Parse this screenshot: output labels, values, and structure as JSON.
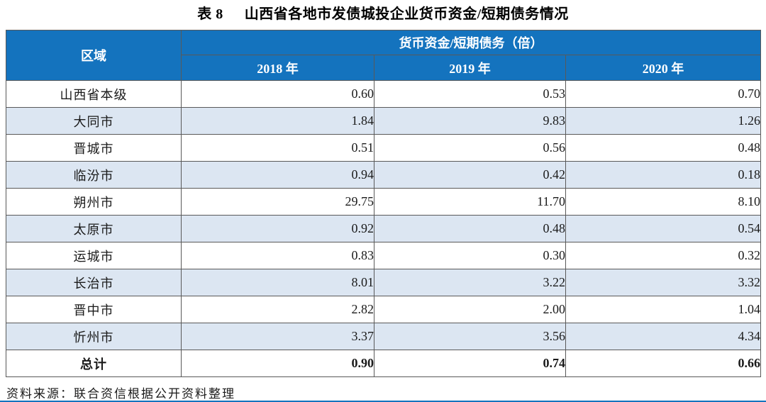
{
  "title": {
    "prefix": "表 8",
    "text": "山西省各地市发债城投企业货币资金/短期债务情况"
  },
  "table": {
    "region_header": "区域",
    "group_header": "货币资金/短期债务（倍）",
    "year_headers": [
      "2018 年",
      "2019 年",
      "2020 年"
    ],
    "rows": [
      {
        "region": "山西省本级",
        "values": [
          "0.60",
          "0.53",
          "0.70"
        ],
        "bold": false
      },
      {
        "region": "大同市",
        "values": [
          "1.84",
          "9.83",
          "1.26"
        ],
        "bold": false
      },
      {
        "region": "晋城市",
        "values": [
          "0.51",
          "0.56",
          "0.48"
        ],
        "bold": false
      },
      {
        "region": "临汾市",
        "values": [
          "0.94",
          "0.42",
          "0.18"
        ],
        "bold": false
      },
      {
        "region": "朔州市",
        "values": [
          "29.75",
          "11.70",
          "8.10"
        ],
        "bold": false
      },
      {
        "region": "太原市",
        "values": [
          "0.92",
          "0.48",
          "0.54"
        ],
        "bold": false
      },
      {
        "region": "运城市",
        "values": [
          "0.83",
          "0.30",
          "0.32"
        ],
        "bold": false
      },
      {
        "region": "长治市",
        "values": [
          "8.01",
          "3.22",
          "3.32"
        ],
        "bold": false
      },
      {
        "region": "晋中市",
        "values": [
          "2.82",
          "2.00",
          "1.04"
        ],
        "bold": false
      },
      {
        "region": "忻州市",
        "values": [
          "3.37",
          "3.56",
          "4.34"
        ],
        "bold": false
      },
      {
        "region": "总计",
        "values": [
          "0.90",
          "0.74",
          "0.66"
        ],
        "bold": true
      }
    ]
  },
  "footer": {
    "source": "资料来源：联合资信根据公开资料整理"
  },
  "colors": {
    "header_bg": "#1473BE",
    "alt_row_bg": "#DCE6F2",
    "border": "#595959",
    "header_text": "#FFFFFF",
    "body_text": "#1A1A1A",
    "bottom_rule": "#1473BE"
  },
  "chart_data": {
    "type": "table",
    "title": "表 8 山西省各地市发债城投企业货币资金/短期债务情况",
    "columns": [
      "区域",
      "2018 年",
      "2019 年",
      "2020 年"
    ],
    "group_header": "货币资金/短期债务（倍）",
    "rows": [
      [
        "山西省本级",
        0.6,
        0.53,
        0.7
      ],
      [
        "大同市",
        1.84,
        9.83,
        1.26
      ],
      [
        "晋城市",
        0.51,
        0.56,
        0.48
      ],
      [
        "临汾市",
        0.94,
        0.42,
        0.18
      ],
      [
        "朔州市",
        29.75,
        11.7,
        8.1
      ],
      [
        "太原市",
        0.92,
        0.48,
        0.54
      ],
      [
        "运城市",
        0.83,
        0.3,
        0.32
      ],
      [
        "长治市",
        8.01,
        3.22,
        3.32
      ],
      [
        "晋中市",
        2.82,
        2.0,
        1.04
      ],
      [
        "忻州市",
        3.37,
        3.56,
        4.34
      ],
      [
        "总计",
        0.9,
        0.74,
        0.66
      ]
    ],
    "source_note": "资料来源：联合资信根据公开资料整理"
  }
}
